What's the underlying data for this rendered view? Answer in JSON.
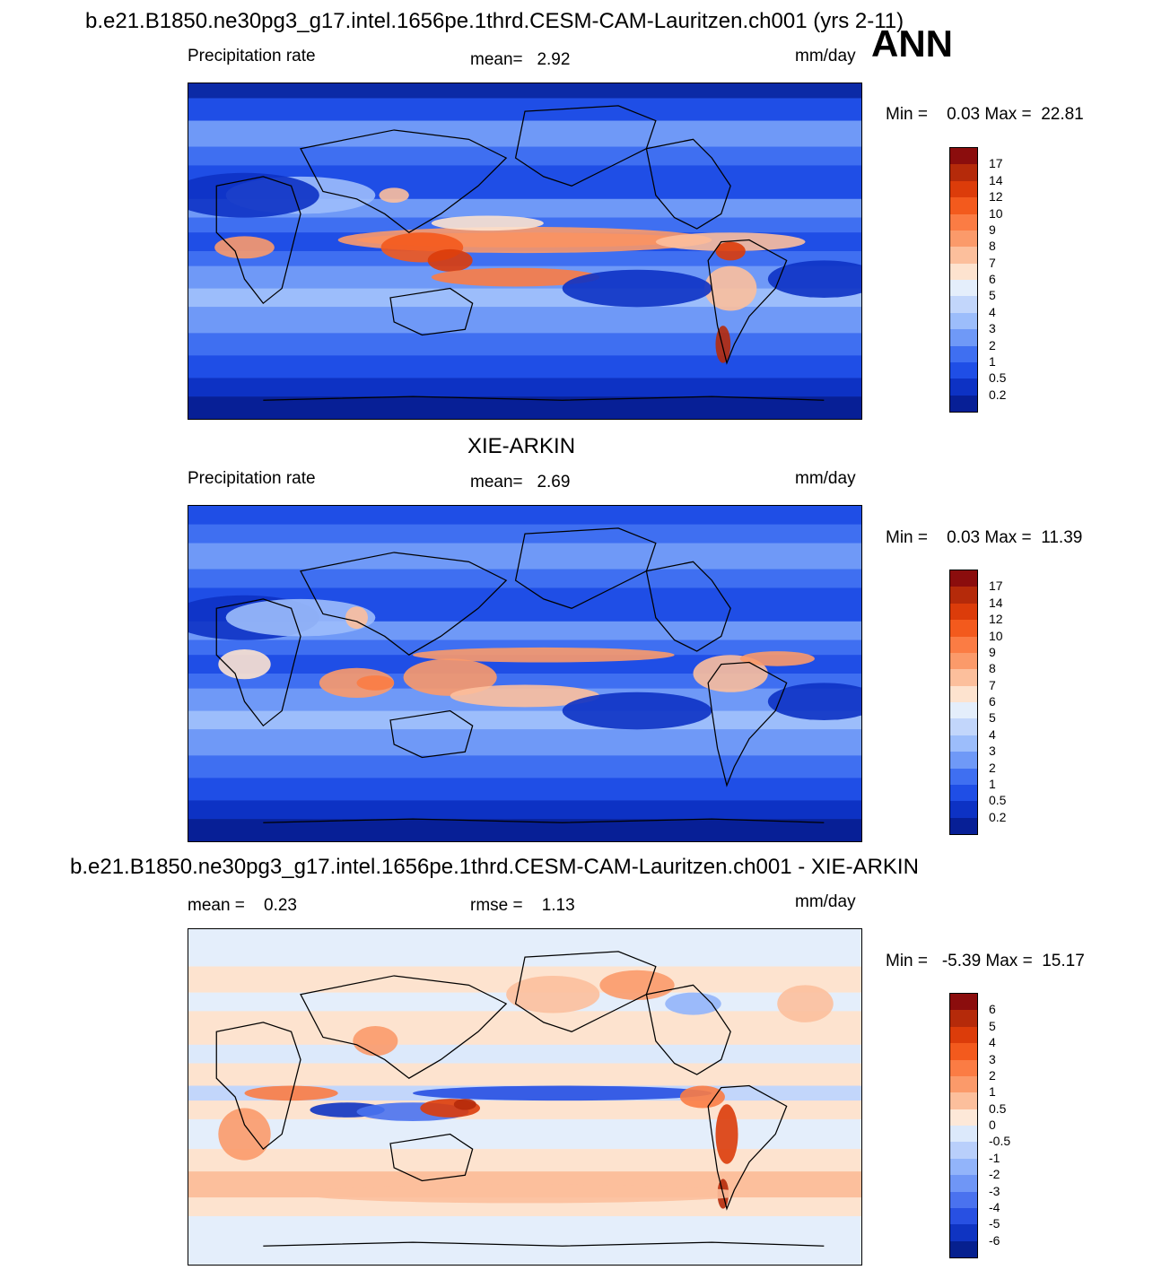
{
  "header": {
    "title": "b.e21.B1850.ne30pg3_g17.intel.1656pe.1thrd.CESM-CAM-Lauritzen.ch001 (yrs 2-11)",
    "season": "ANN"
  },
  "panels": [
    {
      "id": "model",
      "title": "",
      "left_label": "Precipitation rate",
      "center_label": "mean=   2.92",
      "units": "mm/day",
      "minmax": "Min =    0.03 Max =  22.81",
      "colorbar_labels": [
        "17",
        "14",
        "12",
        "10",
        "9",
        "8",
        "7",
        "6",
        "5",
        "4",
        "3",
        "2",
        "1",
        "0.5",
        "0.2"
      ],
      "colorbar_colors": [
        "#8b0d0d",
        "#b52a0a",
        "#dc3c0a",
        "#f35a1d",
        "#fb7c44",
        "#fb9a6a",
        "#fcbf9c",
        "#fde3cf",
        "#e4eefb",
        "#c2d6fb",
        "#9cbdfb",
        "#6f99f7",
        "#3f6ff1",
        "#1f4ee6",
        "#0d32c4",
        "#071f96"
      ],
      "field": "model"
    },
    {
      "id": "obs",
      "title": "XIE-ARKIN",
      "left_label": "Precipitation rate",
      "center_label": "mean=   2.69",
      "units": "mm/day",
      "minmax": "Min =    0.03 Max =  11.39",
      "colorbar_labels": [
        "17",
        "14",
        "12",
        "10",
        "9",
        "8",
        "7",
        "6",
        "5",
        "4",
        "3",
        "2",
        "1",
        "0.5",
        "0.2"
      ],
      "colorbar_colors": [
        "#8b0d0d",
        "#b52a0a",
        "#dc3c0a",
        "#f35a1d",
        "#fb7c44",
        "#fb9a6a",
        "#fcbf9c",
        "#fde3cf",
        "#e4eefb",
        "#c2d6fb",
        "#9cbdfb",
        "#6f99f7",
        "#3f6ff1",
        "#1f4ee6",
        "#0d32c4",
        "#071f96"
      ],
      "field": "obs"
    },
    {
      "id": "diff",
      "title": "b.e21.B1850.ne30pg3_g17.intel.1656pe.1thrd.CESM-CAM-Lauritzen.ch001 - XIE-ARKIN",
      "left_label": "mean =    0.23",
      "center_label": "rmse =    1.13",
      "units": "mm/day",
      "minmax": "Min =   -5.39 Max =  15.17",
      "colorbar_labels": [
        "6",
        "5",
        "4",
        "3",
        "2",
        "1",
        "0.5",
        "0",
        "-0.5",
        "-1",
        "-2",
        "-3",
        "-4",
        "-5",
        "-6"
      ],
      "colorbar_colors": [
        "#8b0d0d",
        "#b52a0a",
        "#dc3c0a",
        "#f35a1d",
        "#fb7c44",
        "#fb9a6a",
        "#fcbf9c",
        "#fde8d8",
        "#dce9fb",
        "#b9cffb",
        "#92b4fa",
        "#6f96f6",
        "#4a72ef",
        "#2850e2",
        "#0f34c2",
        "#06208f"
      ],
      "field": "diff"
    }
  ]
}
